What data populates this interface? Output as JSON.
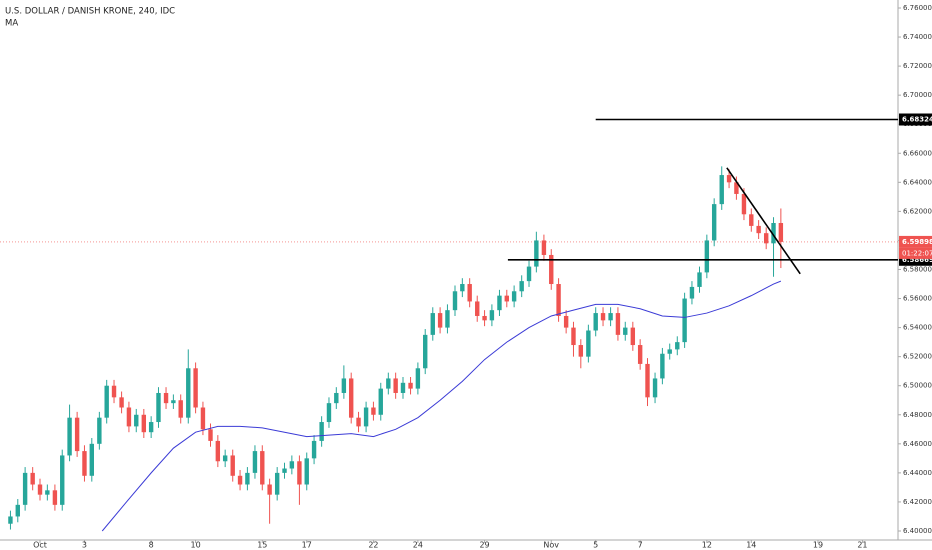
{
  "chart_data": {
    "type": "candlestick",
    "title": "U.S. DOLLAR / DANISH KRONE, 240, IDC",
    "indicator": "MA",
    "up_color": "#26a69a",
    "down_color": "#ef5350",
    "x": [
      -1.33,
      -1,
      -0.67,
      -0.33,
      0,
      0.33,
      0.67,
      1,
      1.33,
      1.67,
      2,
      2.33,
      2.67,
      3,
      3.33,
      3.67,
      4,
      4.33,
      4.67,
      5,
      5.33,
      5.67,
      6,
      6.33,
      6.67,
      7,
      7.33,
      7.67,
      8,
      8.33,
      8.67,
      9,
      9.33,
      9.67,
      10,
      10.33,
      10.67,
      11,
      11.33,
      11.67,
      12,
      12.33,
      12.67,
      13,
      13.33,
      13.67,
      14,
      14.33,
      14.67,
      15,
      15.33,
      15.67,
      16,
      16.33,
      16.67,
      17,
      17.33,
      17.67,
      18,
      18.33,
      18.67,
      19,
      19.33,
      19.67,
      20,
      20.33,
      20.67,
      21,
      21.33,
      21.67,
      22,
      22.33,
      22.67,
      23,
      23.33,
      23.67,
      24,
      24.33,
      24.67,
      25,
      25.33,
      25.67,
      26,
      26.33,
      26.67,
      27,
      27.33,
      27.67,
      28,
      28.33,
      28.67,
      29,
      29.33,
      29.67,
      30,
      30.33,
      30.67,
      31,
      31.33,
      31.67,
      32,
      32.33,
      32.67,
      33,
      33.33
    ],
    "open": [
      6.405,
      6.41,
      6.418,
      6.44,
      6.432,
      6.425,
      6.428,
      6.418,
      6.452,
      6.478,
      6.455,
      6.438,
      6.46,
      6.478,
      6.5,
      6.492,
      6.485,
      6.472,
      6.48,
      6.468,
      6.475,
      6.495,
      6.488,
      6.49,
      6.478,
      6.512,
      6.485,
      6.47,
      6.462,
      6.448,
      6.452,
      6.438,
      6.432,
      6.44,
      6.455,
      6.432,
      6.425,
      6.44,
      6.443,
      6.448,
      6.432,
      6.45,
      6.462,
      6.475,
      6.488,
      6.495,
      6.505,
      6.478,
      6.472,
      6.485,
      6.48,
      6.498,
      6.505,
      6.495,
      6.502,
      6.498,
      6.512,
      6.535,
      6.55,
      6.54,
      6.552,
      6.565,
      6.57,
      6.558,
      6.548,
      6.545,
      6.552,
      6.562,
      6.558,
      6.565,
      6.572,
      6.582,
      6.6,
      6.59,
      6.57,
      6.548,
      6.54,
      6.528,
      6.52,
      6.538,
      6.55,
      6.545,
      6.55,
      6.535,
      6.54,
      6.528,
      6.515,
      6.492,
      6.505,
      6.522,
      6.525,
      6.53,
      6.56,
      6.568,
      6.578,
      6.6,
      6.625,
      6.645,
      6.64,
      6.632,
      6.618,
      6.61,
      6.605,
      6.598,
      6.612
    ],
    "high": [
      6.414,
      6.422,
      6.444,
      6.444,
      6.436,
      6.432,
      6.432,
      6.456,
      6.487,
      6.482,
      6.459,
      6.464,
      6.482,
      6.504,
      6.504,
      6.496,
      6.489,
      6.484,
      6.484,
      6.479,
      6.499,
      6.499,
      6.494,
      6.494,
      6.525,
      6.516,
      6.489,
      6.474,
      6.466,
      6.456,
      6.456,
      6.442,
      6.444,
      6.459,
      6.459,
      6.436,
      6.444,
      6.447,
      6.452,
      6.452,
      6.454,
      6.466,
      6.479,
      6.492,
      6.499,
      6.514,
      6.509,
      6.482,
      6.489,
      6.489,
      6.502,
      6.509,
      6.509,
      6.506,
      6.506,
      6.516,
      6.539,
      6.554,
      6.554,
      6.556,
      6.569,
      6.574,
      6.574,
      6.562,
      6.552,
      6.556,
      6.566,
      6.566,
      6.569,
      6.576,
      6.586,
      6.606,
      6.604,
      6.594,
      6.574,
      6.552,
      6.544,
      6.532,
      6.542,
      6.554,
      6.554,
      6.554,
      6.554,
      6.544,
      6.544,
      6.532,
      6.519,
      6.509,
      6.526,
      6.529,
      6.534,
      6.564,
      6.572,
      6.582,
      6.604,
      6.629,
      6.651,
      6.649,
      6.644,
      6.636,
      6.622,
      6.614,
      6.609,
      6.616,
      6.622
    ],
    "low": [
      6.401,
      6.406,
      6.414,
      6.428,
      6.421,
      6.421,
      6.414,
      6.414,
      6.448,
      6.451,
      6.434,
      6.434,
      6.456,
      6.474,
      6.488,
      6.481,
      6.468,
      6.468,
      6.464,
      6.464,
      6.471,
      6.484,
      6.484,
      6.474,
      6.474,
      6.481,
      6.466,
      6.458,
      6.444,
      6.444,
      6.434,
      6.428,
      6.428,
      6.436,
      6.428,
      6.405,
      6.421,
      6.436,
      6.439,
      6.418,
      6.428,
      6.446,
      6.458,
      6.471,
      6.484,
      6.491,
      6.474,
      6.468,
      6.468,
      6.476,
      6.476,
      6.494,
      6.491,
      6.491,
      6.494,
      6.494,
      6.508,
      6.531,
      6.536,
      6.536,
      6.548,
      6.561,
      6.554,
      6.544,
      6.541,
      6.541,
      6.548,
      6.554,
      6.554,
      6.561,
      6.568,
      6.578,
      6.586,
      6.566,
      6.544,
      6.536,
      6.52,
      6.512,
      6.516,
      6.534,
      6.541,
      6.541,
      6.531,
      6.531,
      6.524,
      6.511,
      6.486,
      6.488,
      6.501,
      6.518,
      6.521,
      6.526,
      6.556,
      6.564,
      6.574,
      6.596,
      6.621,
      6.636,
      6.628,
      6.614,
      6.606,
      6.601,
      6.594,
      6.575,
      6.581
    ],
    "close": [
      6.41,
      6.418,
      6.44,
      6.432,
      6.425,
      6.428,
      6.418,
      6.452,
      6.478,
      6.455,
      6.438,
      6.46,
      6.478,
      6.5,
      6.492,
      6.485,
      6.472,
      6.48,
      6.468,
      6.475,
      6.495,
      6.488,
      6.49,
      6.478,
      6.512,
      6.485,
      6.47,
      6.462,
      6.448,
      6.452,
      6.438,
      6.432,
      6.44,
      6.455,
      6.432,
      6.425,
      6.44,
      6.443,
      6.448,
      6.432,
      6.45,
      6.462,
      6.475,
      6.488,
      6.495,
      6.505,
      6.478,
      6.472,
      6.485,
      6.48,
      6.498,
      6.505,
      6.495,
      6.502,
      6.498,
      6.512,
      6.535,
      6.55,
      6.54,
      6.552,
      6.565,
      6.57,
      6.558,
      6.548,
      6.545,
      6.552,
      6.562,
      6.558,
      6.565,
      6.572,
      6.582,
      6.6,
      6.59,
      6.57,
      6.548,
      6.54,
      6.528,
      6.52,
      6.538,
      6.55,
      6.545,
      6.55,
      6.535,
      6.54,
      6.528,
      6.515,
      6.492,
      6.505,
      6.522,
      6.525,
      6.53,
      6.56,
      6.568,
      6.578,
      6.6,
      6.625,
      6.645,
      6.64,
      6.632,
      6.618,
      6.61,
      6.605,
      6.598,
      6.612,
      6.599
    ],
    "ma": {
      "color": "#3b3bd6",
      "x": [
        2.8,
        4,
        5,
        6,
        7,
        8,
        9,
        10,
        11,
        12,
        13,
        14,
        15,
        16,
        17,
        18,
        19,
        20,
        21,
        22,
        23,
        24,
        25,
        26,
        27,
        28,
        29,
        30,
        31,
        32,
        33,
        33.33
      ],
      "values": [
        6.4,
        6.422,
        6.44,
        6.457,
        6.468,
        6.472,
        6.472,
        6.471,
        6.468,
        6.465,
        6.466,
        6.467,
        6.465,
        6.47,
        6.478,
        6.49,
        6.503,
        6.518,
        6.53,
        6.54,
        6.548,
        6.552,
        6.556,
        6.556,
        6.553,
        6.548,
        6.547,
        6.55,
        6.555,
        6.562,
        6.57,
        6.572
      ]
    },
    "hlines": [
      {
        "value": 6.68324,
        "label": "6.68324",
        "x_start": 25
      },
      {
        "value": 6.58669,
        "label": "6.58669",
        "x_start": 21.05
      }
    ],
    "trendline": {
      "x": [
        30.9,
        34.2
      ],
      "y": [
        6.65,
        6.577
      ]
    },
    "last_price": {
      "value": 6.59898,
      "label": "6.59898",
      "countdown": "01:22:07"
    },
    "xlim": [
      -1.8,
      38.6
    ],
    "ylim": [
      6.3938,
      6.7655
    ],
    "xticks": [
      {
        "value": 0,
        "label": "Oct"
      },
      {
        "value": 2,
        "label": "3"
      },
      {
        "value": 5,
        "label": "8"
      },
      {
        "value": 7,
        "label": "10"
      },
      {
        "value": 10,
        "label": "15"
      },
      {
        "value": 12,
        "label": "17"
      },
      {
        "value": 15,
        "label": "22"
      },
      {
        "value": 17,
        "label": "24"
      },
      {
        "value": 20,
        "label": "29"
      },
      {
        "value": 23,
        "label": "Nov"
      },
      {
        "value": 25,
        "label": "5"
      },
      {
        "value": 27,
        "label": "7"
      },
      {
        "value": 30,
        "label": "12"
      },
      {
        "value": 32,
        "label": "14"
      },
      {
        "value": 35,
        "label": "19"
      },
      {
        "value": 37,
        "label": "21"
      }
    ],
    "yticks": [
      {
        "value": 6.4,
        "label": "6.40000"
      },
      {
        "value": 6.42,
        "label": "6.42000"
      },
      {
        "value": 6.44,
        "label": "6.44000"
      },
      {
        "value": 6.46,
        "label": "6.46000"
      },
      {
        "value": 6.48,
        "label": "6.48000"
      },
      {
        "value": 6.5,
        "label": "6.50000"
      },
      {
        "value": 6.52,
        "label": "6.52000"
      },
      {
        "value": 6.54,
        "label": "6.54000"
      },
      {
        "value": 6.56,
        "label": "6.56000"
      },
      {
        "value": 6.58,
        "label": "6.58000"
      },
      {
        "value": 6.6,
        "label": "6.60000"
      },
      {
        "value": 6.62,
        "label": "6.62000"
      },
      {
        "value": 6.64,
        "label": "6.64000"
      },
      {
        "value": 6.66,
        "label": "6.66000"
      },
      {
        "value": 6.68,
        "label": "6.68000"
      },
      {
        "value": 6.7,
        "label": "6.70000"
      },
      {
        "value": 6.72,
        "label": "6.72000"
      },
      {
        "value": 6.74,
        "label": "6.74000"
      },
      {
        "value": 6.76,
        "label": "6.76000"
      }
    ]
  }
}
